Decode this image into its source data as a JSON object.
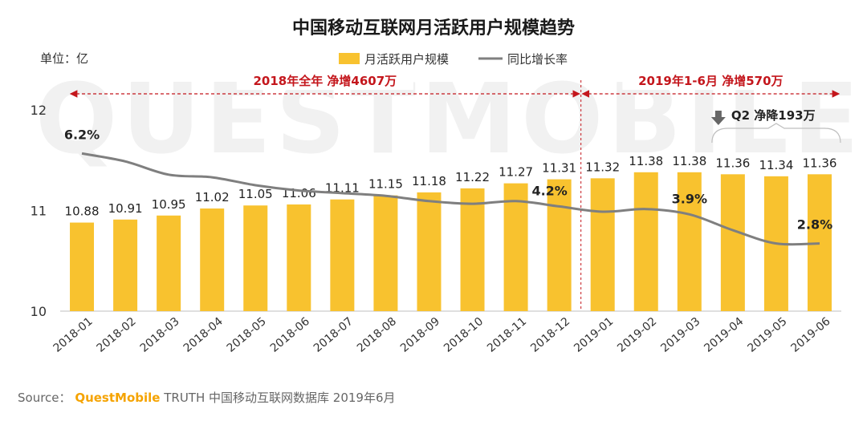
{
  "chart_data": {
    "type": "bar",
    "title": "中国移动互联网月活跃用户规模趋势",
    "unit_label": "单位：亿",
    "categories": [
      "2018-01",
      "2018-02",
      "2018-03",
      "2018-04",
      "2018-05",
      "2018-06",
      "2018-07",
      "2018-08",
      "2018-09",
      "2018-10",
      "2018-11",
      "2018-12",
      "2019-01",
      "2019-02",
      "2019-03",
      "2019-04",
      "2019-05",
      "2019-06"
    ],
    "series": [
      {
        "name": "月活跃用户规模",
        "type": "bar",
        "color": "#f8c22f",
        "values": [
          10.88,
          10.91,
          10.95,
          11.02,
          11.05,
          11.06,
          11.11,
          11.15,
          11.18,
          11.22,
          11.27,
          11.31,
          11.32,
          11.38,
          11.38,
          11.36,
          11.34,
          11.36
        ],
        "labels": [
          "10.88",
          "10.91",
          "10.95",
          "11.02",
          "11.05",
          "11.06",
          "11.11",
          "11.15",
          "11.18",
          "11.22",
          "11.27",
          "11.31",
          "11.32",
          "11.38",
          "11.38",
          "11.36",
          "11.34",
          "11.36"
        ]
      },
      {
        "name": "同比增长率",
        "type": "line",
        "color": "#7f7f7f",
        "values_pct": [
          6.2,
          5.9,
          5.4,
          5.3,
          5.0,
          4.8,
          4.7,
          4.6,
          4.4,
          4.3,
          4.4,
          4.2,
          4.0,
          4.1,
          3.9,
          3.3,
          2.8,
          2.8
        ]
      }
    ],
    "rate_labels": [
      {
        "index": 0,
        "text": "6.2%"
      },
      {
        "index": 11,
        "text": "4.2%"
      },
      {
        "index": 14,
        "text": "3.9%"
      },
      {
        "index": 17,
        "text": "2.8%"
      }
    ],
    "y_ticks": [
      "10",
      "11",
      "12"
    ],
    "ylim": [
      10,
      12
    ],
    "rate_range_pct": [
      2,
      7
    ],
    "periods": [
      {
        "text": "2018年全年  净增4607万",
        "from_index": 0,
        "to_index": 11
      },
      {
        "text": "2019年1-6月  净增570万",
        "from_index": 12,
        "to_index": 17
      }
    ],
    "q2_annotation": {
      "text": "Q2 净降193万",
      "from_index": 15,
      "to_index": 17
    },
    "divider_color": "#c4161c",
    "legend_position": "top-center"
  },
  "watermark": "QUESTMOBILE",
  "source": {
    "prefix": "Source：",
    "brand": "QuestMobile",
    "rest": " TRUTH 中国移动互联网数据库 2019年6月"
  }
}
